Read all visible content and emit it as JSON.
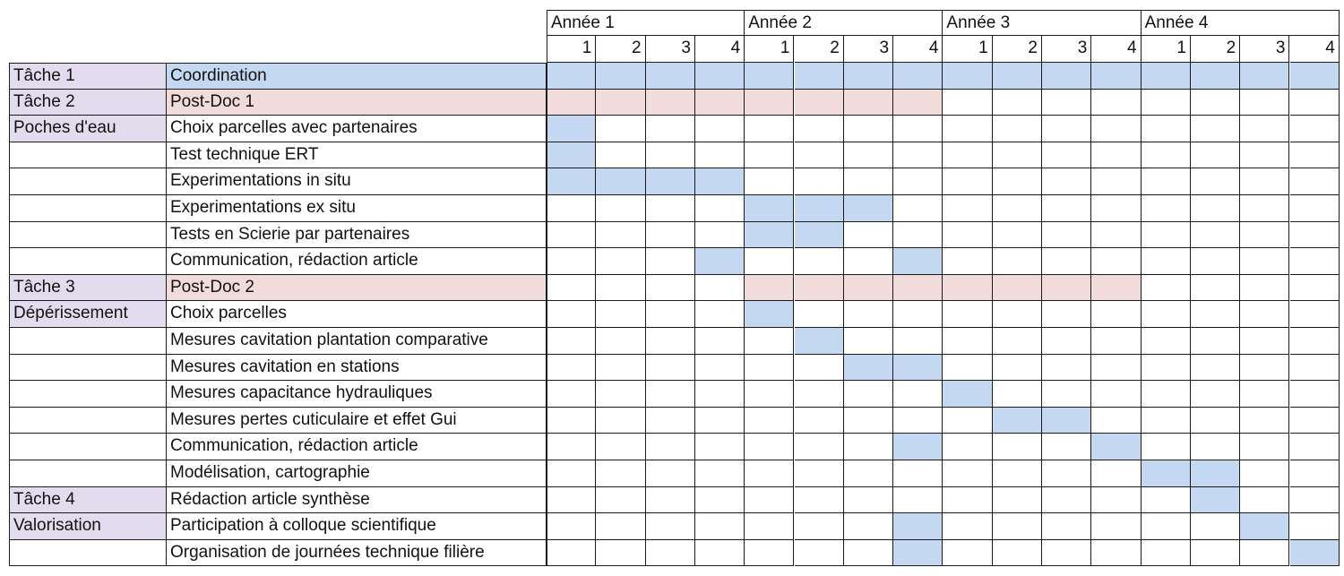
{
  "colors": {
    "blue": "#c5d8f1",
    "pink": "#f2dcdb",
    "lavender": "#e3dcee",
    "border": "#1a1a1a",
    "white": "#ffffff"
  },
  "years": [
    "Année 1",
    "Année 2",
    "Année 3",
    "Année 4"
  ],
  "quarters": [
    "1",
    "2",
    "3",
    "4"
  ],
  "rows": [
    {
      "group": "Tâche 1",
      "task": "Coordination",
      "style": "blue-row",
      "cells": [
        1,
        1,
        1,
        1,
        1,
        1,
        1,
        1,
        1,
        1,
        1,
        1,
        1,
        1,
        1,
        1
      ]
    },
    {
      "group": "Tâche 2",
      "task": "Post-Doc 1",
      "style": "pink-row",
      "cells": [
        1,
        1,
        1,
        1,
        1,
        1,
        1,
        1,
        0,
        0,
        0,
        0,
        0,
        0,
        0,
        0
      ]
    },
    {
      "group": "Poches d'eau",
      "task": "Choix parcelles avec partenaires",
      "style": "normal",
      "cells": [
        1,
        0,
        0,
        0,
        0,
        0,
        0,
        0,
        0,
        0,
        0,
        0,
        0,
        0,
        0,
        0
      ]
    },
    {
      "group": "",
      "task": "Test technique ERT",
      "style": "normal",
      "cells": [
        1,
        0,
        0,
        0,
        0,
        0,
        0,
        0,
        0,
        0,
        0,
        0,
        0,
        0,
        0,
        0
      ]
    },
    {
      "group": "",
      "task": "Experimentations in situ",
      "style": "normal",
      "cells": [
        1,
        1,
        1,
        1,
        0,
        0,
        0,
        0,
        0,
        0,
        0,
        0,
        0,
        0,
        0,
        0
      ]
    },
    {
      "group": "",
      "task": "Experimentations ex situ",
      "style": "normal",
      "cells": [
        0,
        0,
        0,
        0,
        1,
        1,
        1,
        0,
        0,
        0,
        0,
        0,
        0,
        0,
        0,
        0
      ]
    },
    {
      "group": "",
      "task": "Tests en Scierie par partenaires",
      "style": "normal",
      "cells": [
        0,
        0,
        0,
        0,
        1,
        1,
        0,
        0,
        0,
        0,
        0,
        0,
        0,
        0,
        0,
        0
      ]
    },
    {
      "group": "",
      "task": "Communication, rédaction article",
      "style": "normal",
      "cells": [
        0,
        0,
        0,
        1,
        0,
        0,
        0,
        1,
        0,
        0,
        0,
        0,
        0,
        0,
        0,
        0
      ]
    },
    {
      "group": "Tâche 3",
      "task": "Post-Doc 2",
      "style": "pink-row",
      "cells": [
        0,
        0,
        0,
        0,
        1,
        1,
        1,
        1,
        1,
        1,
        1,
        1,
        0,
        0,
        0,
        0
      ]
    },
    {
      "group": "Dépérissement",
      "task": "Choix parcelles",
      "style": "normal",
      "cells": [
        0,
        0,
        0,
        0,
        1,
        0,
        0,
        0,
        0,
        0,
        0,
        0,
        0,
        0,
        0,
        0
      ]
    },
    {
      "group": "",
      "task": "Mesures cavitation plantation comparative",
      "style": "normal",
      "cells": [
        0,
        0,
        0,
        0,
        0,
        1,
        0,
        0,
        0,
        0,
        0,
        0,
        0,
        0,
        0,
        0
      ]
    },
    {
      "group": "",
      "task": "Mesures cavitation en stations",
      "style": "normal",
      "cells": [
        0,
        0,
        0,
        0,
        0,
        0,
        1,
        1,
        0,
        0,
        0,
        0,
        0,
        0,
        0,
        0
      ]
    },
    {
      "group": "",
      "task": "Mesures capacitance hydrauliques",
      "style": "normal",
      "cells": [
        0,
        0,
        0,
        0,
        0,
        0,
        0,
        0,
        1,
        0,
        0,
        0,
        0,
        0,
        0,
        0
      ]
    },
    {
      "group": "",
      "task": "Mesures pertes cuticulaire et effet Gui",
      "style": "normal",
      "cells": [
        0,
        0,
        0,
        0,
        0,
        0,
        0,
        0,
        0,
        1,
        1,
        0,
        0,
        0,
        0,
        0
      ]
    },
    {
      "group": "",
      "task": "Communication, rédaction article",
      "style": "normal",
      "cells": [
        0,
        0,
        0,
        0,
        0,
        0,
        0,
        1,
        0,
        0,
        0,
        1,
        0,
        0,
        0,
        0
      ]
    },
    {
      "group": "",
      "task": "Modélisation, cartographie",
      "style": "normal",
      "cells": [
        0,
        0,
        0,
        0,
        0,
        0,
        0,
        0,
        0,
        0,
        0,
        0,
        1,
        1,
        0,
        0
      ]
    },
    {
      "group": "Tâche 4",
      "task": "Rédaction article synthèse",
      "style": "normal",
      "cells": [
        0,
        0,
        0,
        0,
        0,
        0,
        0,
        0,
        0,
        0,
        0,
        0,
        0,
        1,
        0,
        0
      ]
    },
    {
      "group": "Valorisation",
      "task": "Participation à colloque scientifique",
      "style": "normal",
      "cells": [
        0,
        0,
        0,
        0,
        0,
        0,
        0,
        1,
        0,
        0,
        0,
        0,
        0,
        0,
        1,
        0
      ]
    },
    {
      "group": "",
      "task": "Organisation de journées technique filière",
      "style": "normal",
      "cells": [
        0,
        0,
        0,
        0,
        0,
        0,
        0,
        1,
        0,
        0,
        0,
        0,
        0,
        0,
        0,
        1
      ]
    }
  ]
}
